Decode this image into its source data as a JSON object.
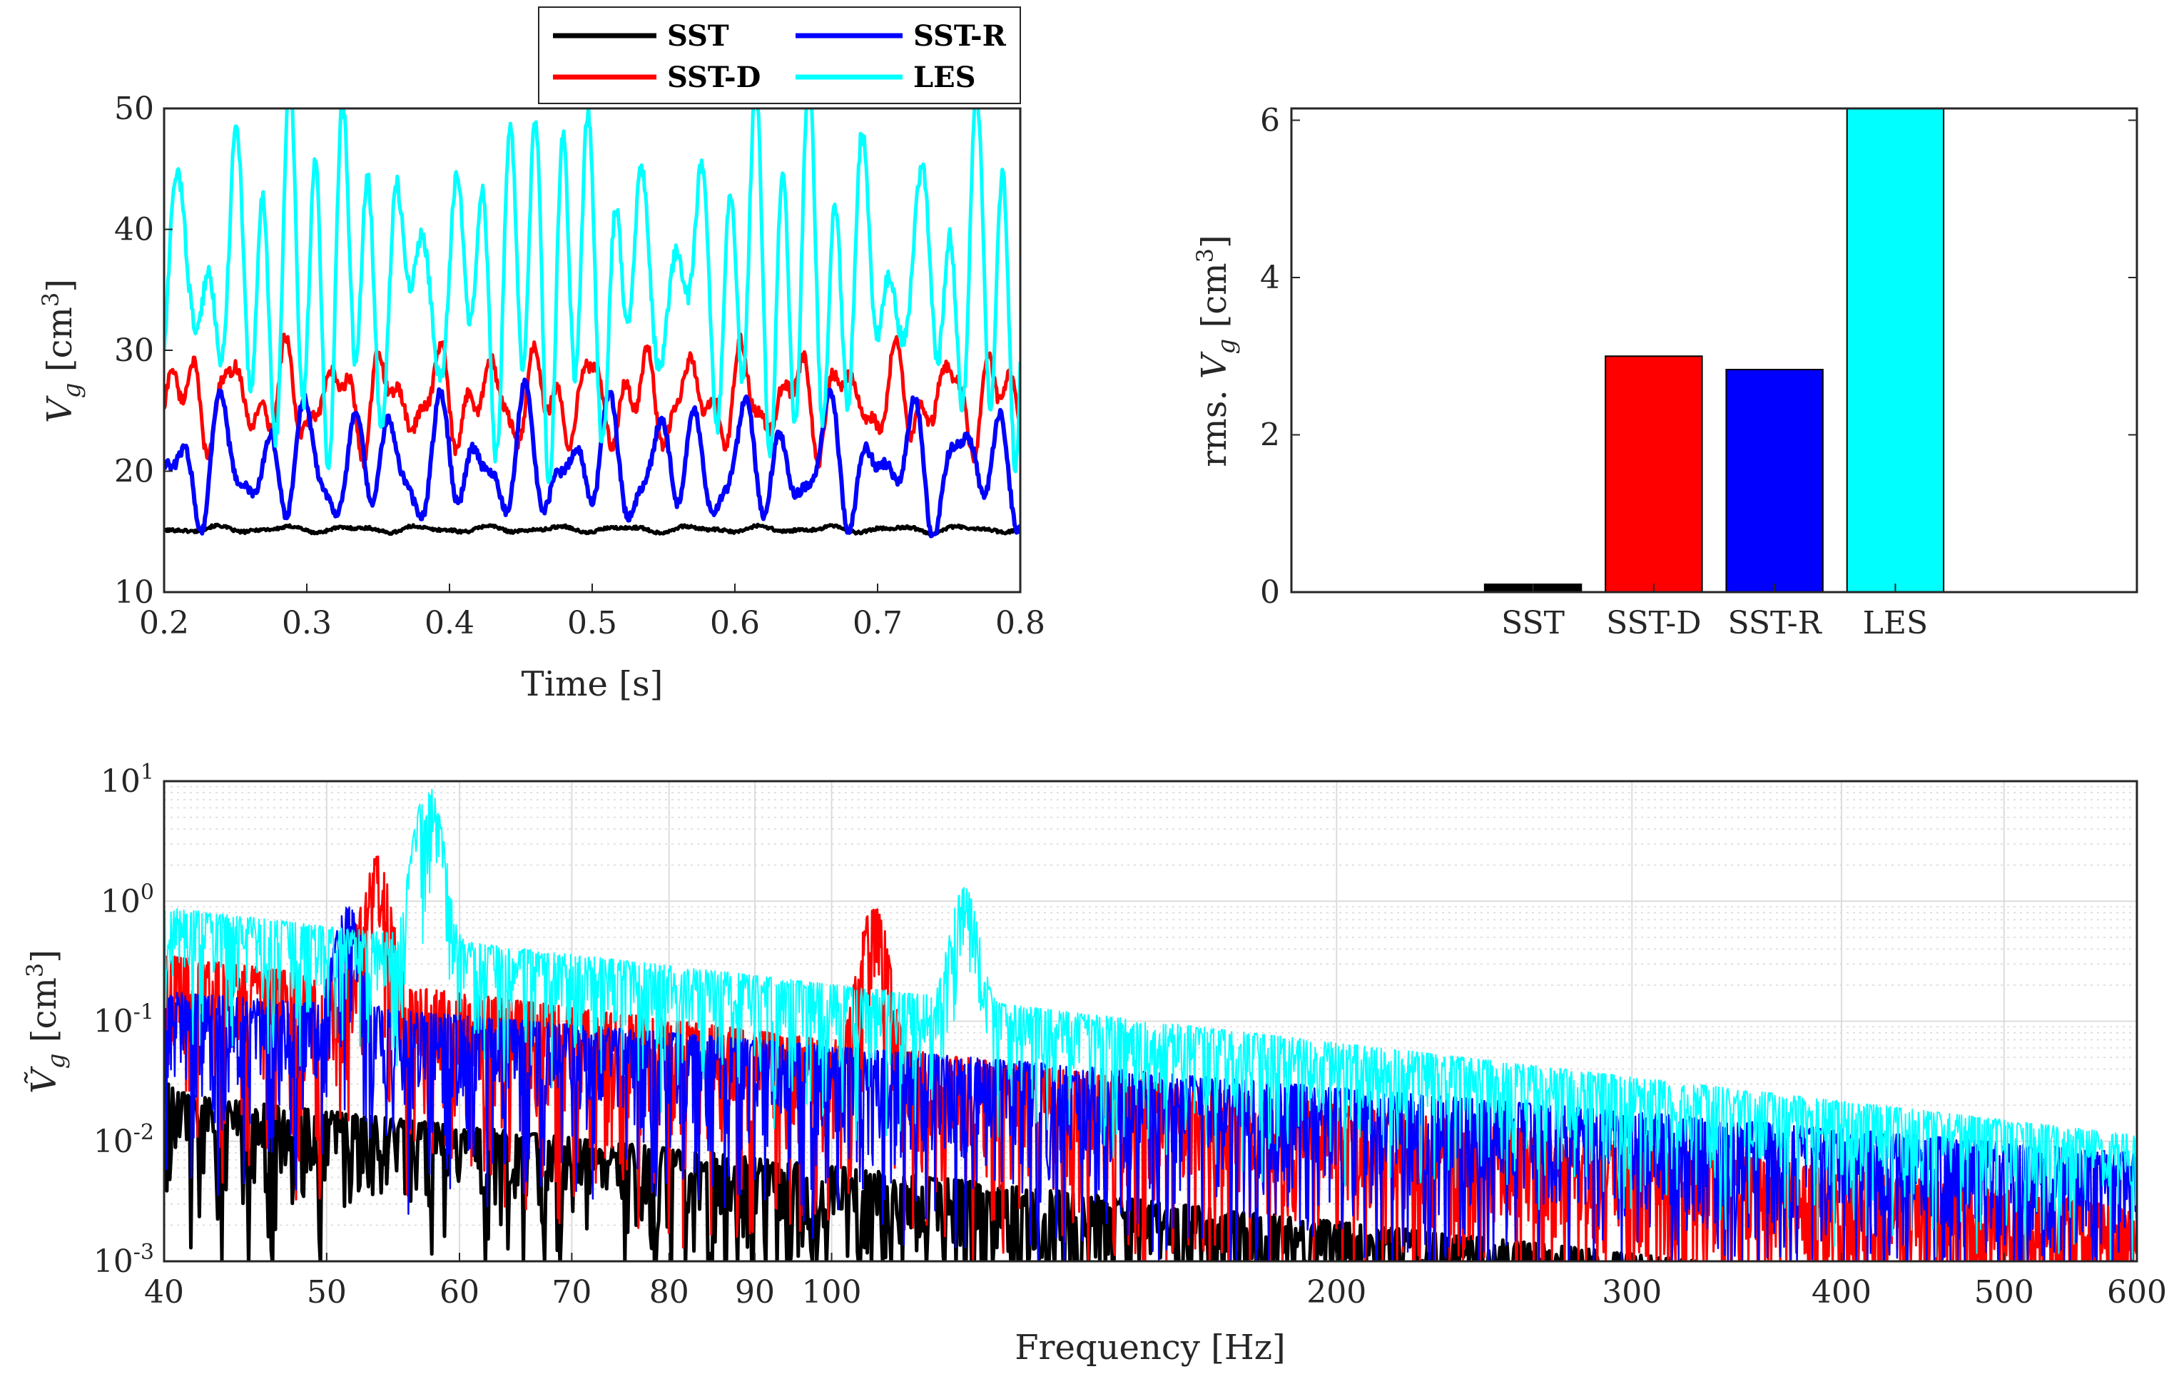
{
  "colors": {
    "SST": "#000000",
    "SST-D": "#ff0000",
    "SST-R": "#0000ff",
    "LES": "#00ffff"
  },
  "legend": {
    "entries": [
      "SST",
      "SST-D",
      "SST-R",
      "LES"
    ]
  },
  "chart_data": [
    {
      "type": "line",
      "name": "time-series",
      "xlabel": "Time [s]",
      "ylabel_main": "V",
      "ylabel_sub": "g",
      "ylabel_unit": "[cm",
      "ylabel_exp": "3",
      "ylabel_close": "]",
      "xlim": [
        0.2,
        0.8
      ],
      "ylim": [
        10,
        50
      ],
      "xticks": [
        "0.2",
        "0.3",
        "0.4",
        "0.5",
        "0.6",
        "0.7",
        "0.8"
      ],
      "yticks": [
        "10",
        "20",
        "30",
        "40",
        "50"
      ],
      "series": [
        {
          "name": "SST",
          "mean": 15.2,
          "amp": 0.3
        },
        {
          "name": "SST-D",
          "mean": 26.0,
          "amp": 4.0
        },
        {
          "name": "SST-R",
          "mean": 20.5,
          "amp": 5.0
        },
        {
          "name": "LES",
          "mean": 36.0,
          "amp": 13.0
        }
      ]
    },
    {
      "type": "bar",
      "name": "rms-bars",
      "categories": [
        "SST",
        "SST-D",
        "SST-R",
        "LES"
      ],
      "values": [
        0.1,
        3.0,
        2.83,
        6.15
      ],
      "ylabel_prefix": "rms. ",
      "ylabel_main": "V",
      "ylabel_sub": "g",
      "ylabel_unit": "[cm",
      "ylabel_exp": "3",
      "ylabel_close": "]",
      "ylim": [
        0,
        6.15
      ],
      "yticks": [
        "0",
        "2",
        "4",
        "6"
      ]
    },
    {
      "type": "line",
      "name": "spectrum",
      "xscale": "log",
      "yscale": "log",
      "xlabel": "Frequency [Hz]",
      "ylabel_main": "Ṽ",
      "ylabel_sub": "g",
      "ylabel_unit": "[cm",
      "ylabel_exp": "3",
      "ylabel_close": "]",
      "xlim": [
        40,
        600
      ],
      "ylim": [
        0.001,
        10
      ],
      "xticks": [
        "40",
        "50",
        "60",
        "70",
        "80",
        "90",
        "100",
        "200",
        "300",
        "400",
        "500",
        "600"
      ],
      "yticks": [
        {
          "base": "10",
          "exp": "-3"
        },
        {
          "base": "10",
          "exp": "-2"
        },
        {
          "base": "10",
          "exp": "-1"
        },
        {
          "base": "10",
          "exp": "0"
        },
        {
          "base": "10",
          "exp": "1"
        }
      ],
      "peaks": [
        {
          "series": "LES",
          "freq": 57.5,
          "value": 9.0
        },
        {
          "series": "SST-D",
          "freq": 53.5,
          "value": 2.4
        },
        {
          "series": "SST-D",
          "freq": 106,
          "value": 0.95
        },
        {
          "series": "LES",
          "freq": 120,
          "value": 1.3
        },
        {
          "series": "SST-R",
          "freq": 51.5,
          "value": 0.9
        },
        {
          "series": "SST",
          "freq": 40,
          "value": 0.035
        }
      ]
    }
  ]
}
